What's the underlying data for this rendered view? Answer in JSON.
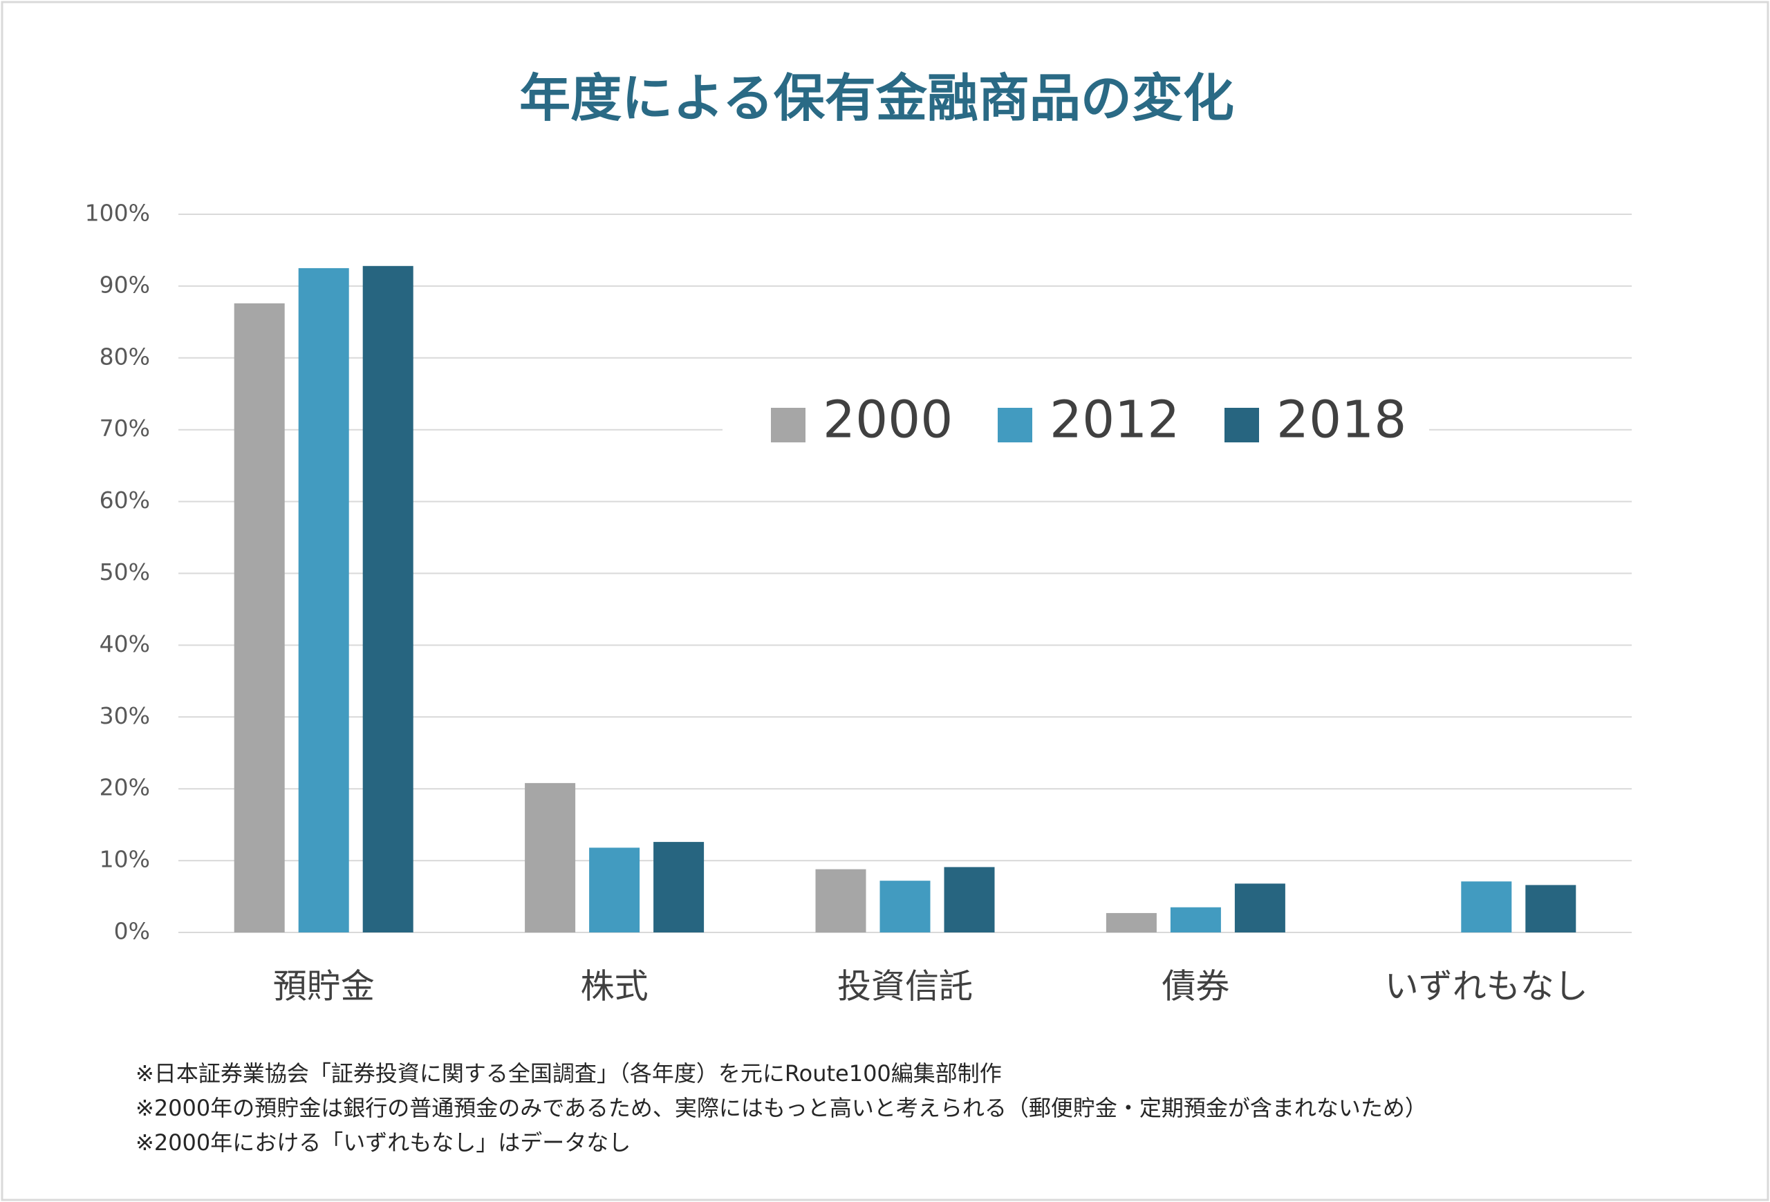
{
  "chart_data": {
    "type": "bar",
    "title": "年度による保有金融商品の変化",
    "categories": [
      "預貯金",
      "株式",
      "投資信託",
      "債券",
      "いずれもなし"
    ],
    "series": [
      {
        "name": "2000",
        "color": "#a6a6a6",
        "values": [
          87.6,
          20.8,
          8.8,
          2.7,
          null
        ]
      },
      {
        "name": "2012",
        "color": "#429bc0",
        "values": [
          92.5,
          11.8,
          7.2,
          3.5,
          7.1
        ]
      },
      {
        "name": "2018",
        "color": "#276580",
        "values": [
          92.8,
          12.6,
          9.1,
          6.8,
          6.6
        ]
      }
    ],
    "ylim": [
      0,
      100
    ],
    "yticks": [
      {
        "value": 0,
        "label": "0%"
      },
      {
        "value": 10,
        "label": "10%"
      },
      {
        "value": 20,
        "label": "20%"
      },
      {
        "value": 30,
        "label": "30%"
      },
      {
        "value": 40,
        "label": "40%"
      },
      {
        "value": 50,
        "label": "50%"
      },
      {
        "value": 60,
        "label": "60%"
      },
      {
        "value": 70,
        "label": "70%"
      },
      {
        "value": 80,
        "label": "80%"
      },
      {
        "value": 90,
        "label": "90%"
      },
      {
        "value": 100,
        "label": "100%"
      }
    ],
    "grid": true,
    "notes": [
      "※日本証券業協会「証券投資に関する全国調査」（各年度）を元にRoute100編集部制作",
      "※2000年の預貯金は銀行の普通預金のみであるため、実際にはもっと高いと考えられる（郵便貯金・定期預金が含まれないため）",
      "※2000年における「いずれもなし」はデータなし"
    ]
  }
}
